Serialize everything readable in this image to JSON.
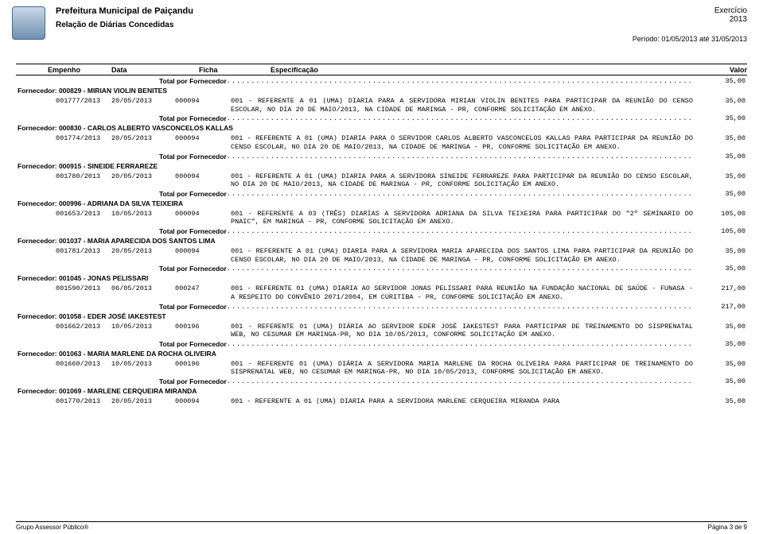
{
  "header": {
    "title1": "Prefeitura Municipal de Paiçandu",
    "title2": "Relação de Diárias Concedidas",
    "exercicio_label": "Exercício",
    "ano": "2013",
    "periodo": "Período: 01/05/2013 até 31/05/2013"
  },
  "columns": {
    "c1": "Empenho",
    "c2": "Data",
    "c3": "Ficha",
    "c4": "Especificação",
    "c5": "Valor"
  },
  "total_label": "Total por Fornecedor",
  "dots": ".......................................................................................................................................................",
  "groups": [
    {
      "pre_total": "35,00",
      "fornecedor": "Fornecedor: 000829 - MIRIAN VIOLIN BENITES",
      "entries": [
        {
          "empenho": "001777/2013",
          "data": "20/05/2013",
          "ficha": "000094",
          "espec": "001 - REFERENTE A 01 (UMA) DIARIA PARA A SERVIDORA MIRIAN VIOLIN BENITES PARA PARTICIPAR DA REUNIÃO DO CENSO ESCOLAR, NO DIA 20 DE MAIO/2013, NA CIDADE DE MARINGA - PR, CONFORME SOLICITAÇÃO EM ANEXO.",
          "valor": "35,00"
        }
      ],
      "post_total": "35,00"
    },
    {
      "fornecedor": "Fornecedor: 000830 - CARLOS ALBERTO VASCONCELOS KALLAS",
      "entries": [
        {
          "empenho": "001774/2013",
          "data": "20/05/2013",
          "ficha": "000094",
          "espec": "001 - REFERENTE A 01 (UMA) DIARIA PARA O SERVIDOR CARLOS ALBERTO VASCONCELOS KALLAS PARA PARTICIPAR DA REUNIÃO DO CENSO ESCOLAR, NO DIA 20 DE MAIO/2013, NA CIDADE DE MARINGA - PR, CONFORME SOLICITAÇÃO EM ANEXO.",
          "valor": "35,00"
        }
      ],
      "post_total": "35,00"
    },
    {
      "fornecedor": "Fornecedor: 000915 - SINEIDE FERRAREZE",
      "entries": [
        {
          "empenho": "001780/2013",
          "data": "20/05/2013",
          "ficha": "000094",
          "espec": "001 - REFERENTE A 01 (UMA) DIARIA PARA A SERVIDORA SINEIDE FERRAREZE PARA PARTICIPAR DA REUNIÃO DO CENSO ESCOLAR, NO DIA 20 DE MAIO/2013, NA CIDADE DE MARINGA - PR, CONFORME SOLICITAÇÃO EM ANEXO.",
          "valor": "35,00"
        }
      ],
      "post_total": "35,00"
    },
    {
      "fornecedor": "Fornecedor: 000996 - ADRIANA DA SILVA TEIXEIRA",
      "entries": [
        {
          "empenho": "001653/2013",
          "data": "10/05/2013",
          "ficha": "000094",
          "espec": "001 - REFERENTE A 03 (TRÊS) DIARIAS A SERVIDORA ADRIANA DA SILVA TEIXEIRA PARA PARTICIPAR DO \"2º SEMINARIO DO PNAIC\", EM MARINGÁ - PR, CONFORME SOLICITAÇÃO EM ANEXO.",
          "valor": "105,00"
        }
      ],
      "post_total": "105,00"
    },
    {
      "fornecedor": "Fornecedor: 001037 - MARIA APARECIDA DOS SANTOS LIMA",
      "entries": [
        {
          "empenho": "001781/2013",
          "data": "20/05/2013",
          "ficha": "000094",
          "espec": "001 - REFERENTE A 01 (UMA) DIARIA PARA A SERVIDORA MARIA APARECIDA DOS SANTOS LIMA PARA PARTICIPAR DA REUNIÃO DO CENSO ESCOLAR, NO DIA 20 DE MAIO/2013, NA CIDADE DE MARINGA - PR, CONFORME SOLICITAÇÃO EM ANEXO.",
          "valor": "35,00"
        }
      ],
      "post_total": "35,00"
    },
    {
      "fornecedor": "Fornecedor: 001045 - JONAS PELISSARI",
      "entries": [
        {
          "empenho": "001590/2013",
          "data": "06/05/2013",
          "ficha": "000247",
          "espec": "001 - REFERENTE 01 (UMA) DIARIA AO SERVIDOR JONAS PELISSARI PARA REUNIÃO NA FUNDAÇÃO NACIONAL DE SAÚDE - FUNASA - A RESPEITO DO CONVÊNIO 2071/2004, EM CURITIBA - PR, CONFORME SOLICITAÇÃO EM ANEXO.",
          "valor": "217,00"
        }
      ],
      "post_total": "217,00"
    },
    {
      "fornecedor": "Fornecedor: 001058 - EDER JOSÉ IAKESTEST",
      "entries": [
        {
          "empenho": "001662/2013",
          "data": "10/05/2013",
          "ficha": "000196",
          "espec": "001 - REFERENTE 01 (UMA) DIÁRIA AO SERVIDOR EDER JOSÉ IAKESTEST PARA PARTICIPAR DE TREINAMENTO DO SISPRENATAL WEB, NO CESUMAR EM MARINGA-PR, NO DIA 10/05/2013, CONFORME SOLICITAÇÃO EM ANEXO.",
          "valor": "35,00"
        }
      ],
      "post_total": "35,00"
    },
    {
      "fornecedor": "Fornecedor: 001063 - MARIA MARLENE DA ROCHA OLIVEIRA",
      "entries": [
        {
          "empenho": "001660/2013",
          "data": "10/05/2013",
          "ficha": "000196",
          "espec": "001 - REFERENTE 01 (UMA) DIÁRIA A SERVIDORA MARIA MARLENE DA ROCHA OLIVEIRA PARA PARTICIPAR DE TREINAMENTO DO SISPRENATAL WEB, NO CESUMAR EM MARINGA-PR, NO DIA 10/05/2013, CONFORME SOLICITAÇÃO EM ANEXO.",
          "valor": "35,00"
        }
      ],
      "post_total": "35,00"
    },
    {
      "fornecedor": "Fornecedor: 001069 - MARLENE CERQUEIRA MIRANDA",
      "entries": [
        {
          "empenho": "001770/2013",
          "data": "20/05/2013",
          "ficha": "000094",
          "espec": "001 - REFERENTE A 01 (UMA) DIARIA PARA A SERVIDORA MARLENE CERQUEIRA MIRANDA PARA",
          "valor": "35,00"
        }
      ]
    }
  ],
  "footer": {
    "left": "Grupo Assessor Público®",
    "right": "Página 3 de 9"
  }
}
